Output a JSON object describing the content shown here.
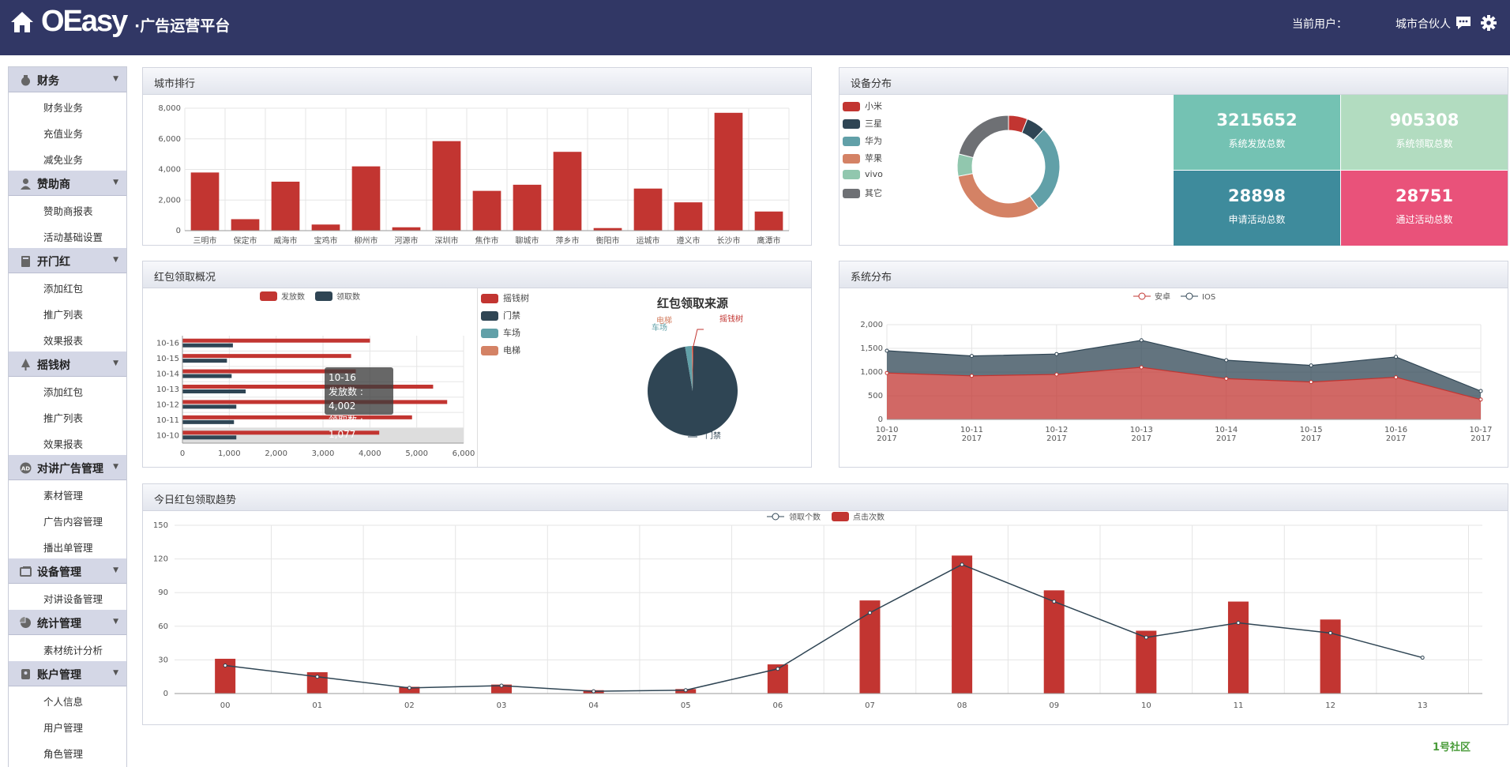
{
  "header": {
    "logo": "OEasy",
    "subtitle": "·广告运营平台",
    "user_label": "当前用户：",
    "user_name": "城市合伙人",
    "icons": [
      "home-icon",
      "message-icon",
      "gear-icon"
    ]
  },
  "sidebar": [
    {
      "label": "财务",
      "icon": "money-bag-icon",
      "items": [
        "财务业务",
        "充值业务",
        "减免业务"
      ]
    },
    {
      "label": "赞助商",
      "icon": "user-icon",
      "items": [
        "赞助商报表",
        "活动基础设置"
      ]
    },
    {
      "label": "开门红",
      "icon": "door-icon",
      "items": [
        "添加红包",
        "推广列表",
        "效果报表"
      ]
    },
    {
      "label": "摇钱树",
      "icon": "tree-icon",
      "items": [
        "添加红包",
        "推广列表",
        "效果报表"
      ]
    },
    {
      "label": "对讲广告管理",
      "icon": "ad-icon",
      "items": [
        "素材管理",
        "广告内容管理",
        "播出单管理"
      ]
    },
    {
      "label": "设备管理",
      "icon": "device-icon",
      "items": [
        "对讲设备管理"
      ]
    },
    {
      "label": "统计管理",
      "icon": "pie-icon",
      "items": [
        "素材统计分析"
      ]
    },
    {
      "label": "账户管理",
      "icon": "account-icon",
      "items": [
        "个人信息",
        "用户管理",
        "角色管理"
      ]
    }
  ],
  "panels": {
    "city_rank": "城市排行",
    "device": "设备分布",
    "redpacket": "红包领取概况",
    "system": "系统分布",
    "today": "今日红包领取趋势"
  },
  "stats": [
    {
      "value": "3215652",
      "label": "系统发放总数",
      "color": "#74c2b3"
    },
    {
      "value": "905308",
      "label": "系统领取总数",
      "color": "#b2dcc0"
    },
    {
      "value": "28898",
      "label": "申请活动总数",
      "color": "#3e8b9c"
    },
    {
      "value": "28751",
      "label": "通过活动总数",
      "color": "#e9527a"
    }
  ],
  "tooltip": {
    "title": "10-16",
    "line1": "发放数 : 4,002",
    "line2": "领取数 : 1,077"
  },
  "watermark": "1号社区",
  "chart_data": [
    {
      "type": "bar",
      "categories": [
        "三明市",
        "保定市",
        "威海市",
        "宝鸡市",
        "柳州市",
        "河源市",
        "深圳市",
        "焦作市",
        "聊城市",
        "萍乡市",
        "衡阳市",
        "运城市",
        "遵义市",
        "长沙市",
        "鹰潭市"
      ],
      "values": [
        3800,
        750,
        3200,
        400,
        4200,
        220,
        5850,
        2600,
        3000,
        5150,
        170,
        2750,
        1850,
        7700,
        1250
      ],
      "ylim": [
        0,
        8000
      ],
      "yticks": [
        "0",
        "2,000",
        "4,000",
        "6,000",
        "8,000"
      ],
      "color": "#c23531"
    },
    {
      "type": "pie",
      "donut": true,
      "legend": [
        "小米",
        "三星",
        "华为",
        "苹果",
        "vivo",
        "其它"
      ],
      "values": [
        6,
        6,
        28,
        32,
        7,
        21
      ],
      "colors": [
        "#c23531",
        "#2f4554",
        "#61a0a8",
        "#d48265",
        "#91c7ae",
        "#6e7074"
      ]
    },
    {
      "type": "bar",
      "orientation": "horizontal",
      "categories": [
        "10-10",
        "10-11",
        "10-12",
        "10-13",
        "10-14",
        "10-15",
        "10-16"
      ],
      "series": [
        {
          "name": "发放数",
          "values": [
            4200,
            4900,
            5650,
            5350,
            3700,
            3600,
            4002
          ],
          "color": "#c23531"
        },
        {
          "name": "领取数",
          "values": [
            1150,
            1100,
            1150,
            1350,
            1050,
            950,
            1077
          ],
          "color": "#2f4554"
        }
      ],
      "xlim": [
        0,
        6000
      ],
      "xticks": [
        "0",
        "1,000",
        "2,000",
        "3,000",
        "4,000",
        "5,000",
        "6,000"
      ]
    },
    {
      "type": "pie",
      "title": "红包领取来源",
      "legend": [
        "摇钱树",
        "门禁",
        "车场",
        "电梯"
      ],
      "values": [
        0.3,
        97,
        2.4,
        0.3
      ],
      "colors": [
        "#c23531",
        "#2f4554",
        "#61a0a8",
        "#d48265"
      ],
      "labels": [
        "摇钱树",
        "门禁",
        "车场",
        "电梯"
      ]
    },
    {
      "type": "area",
      "x": [
        "10-10\n2017",
        "10-11\n2017",
        "10-12\n2017",
        "10-13\n2017",
        "10-14\n2017",
        "10-15\n2017",
        "10-16\n2017",
        "10-17\n2017"
      ],
      "series": [
        {
          "name": "安卓",
          "values": [
            980,
            920,
            950,
            1100,
            860,
            790,
            890,
            420
          ],
          "color": "#c23531"
        },
        {
          "name": "IOS",
          "values": [
            470,
            420,
            430,
            570,
            390,
            350,
            430,
            180
          ],
          "color": "#2f4554"
        }
      ],
      "ylim": [
        0,
        2000
      ],
      "yticks": [
        "0",
        "500",
        "1,000",
        "1,500",
        "2,000"
      ]
    },
    {
      "type": "bar",
      "categories": [
        "00",
        "01",
        "02",
        "03",
        "04",
        "05",
        "06",
        "07",
        "08",
        "09",
        "10",
        "11",
        "12",
        "13"
      ],
      "series": [
        {
          "name": "领取个数",
          "kind": "line",
          "values": [
            25,
            15,
            5,
            7,
            2,
            3,
            22,
            72,
            115,
            82,
            50,
            63,
            54,
            32
          ],
          "color": "#2f4554"
        },
        {
          "name": "点击次数",
          "kind": "bar",
          "values": [
            31,
            19,
            6,
            8,
            3,
            4,
            26,
            83,
            123,
            92,
            56,
            82,
            66,
            null
          ],
          "color": "#c23531"
        }
      ],
      "ylim": [
        0,
        150
      ],
      "yticks": [
        "0",
        "30",
        "60",
        "90",
        "120",
        "150"
      ]
    }
  ]
}
